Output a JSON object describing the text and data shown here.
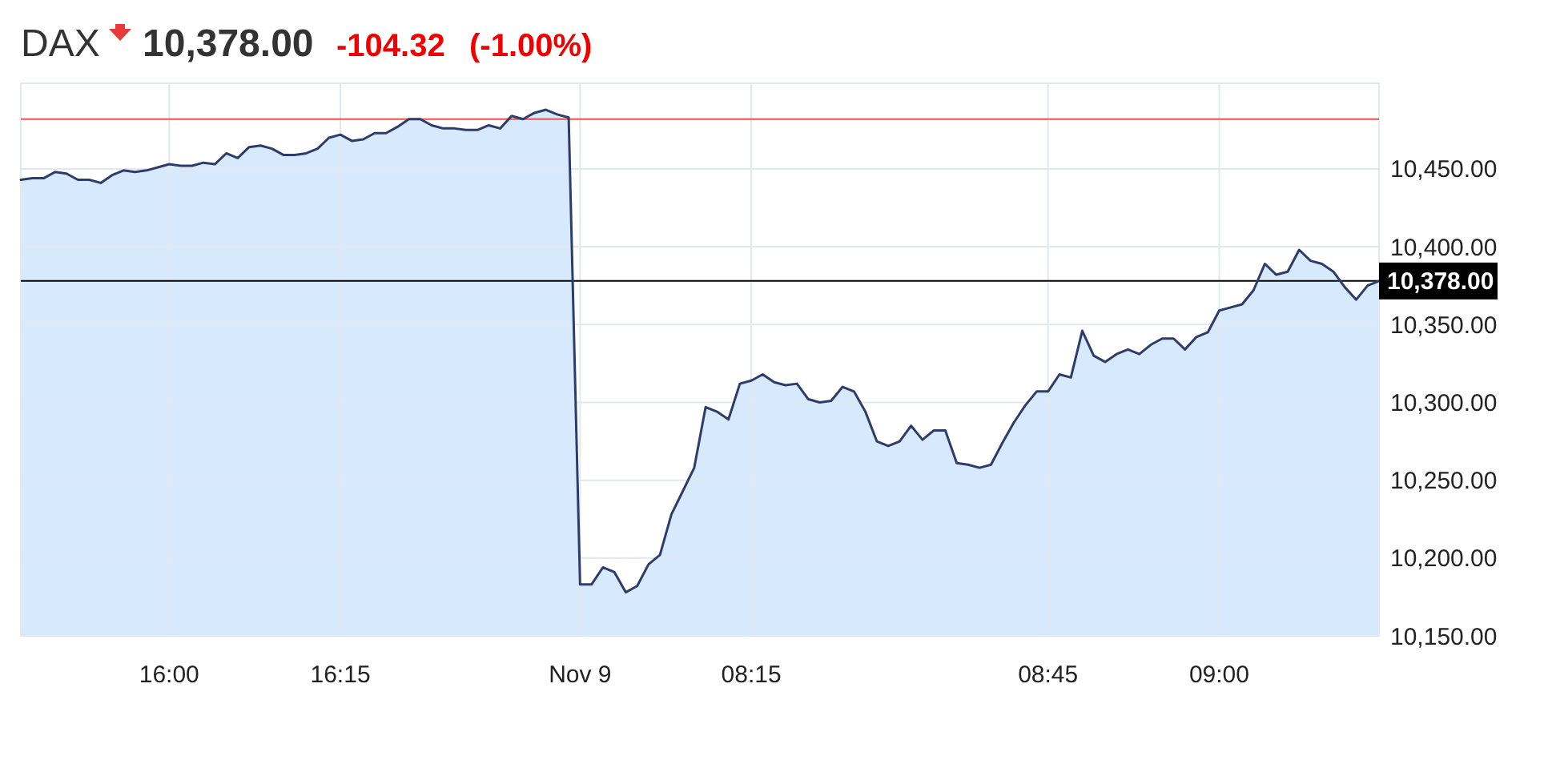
{
  "chart_data": {
    "type": "area",
    "title": "DAX",
    "subtitle": "10,378.00",
    "annotations": [
      "-104.32",
      "(-1.00%)"
    ],
    "categories": [
      null,
      null,
      null,
      null,
      null,
      null,
      null,
      null,
      null,
      null,
      null,
      null,
      null,
      "16:00",
      null,
      null,
      null,
      null,
      null,
      null,
      null,
      null,
      null,
      null,
      null,
      null,
      null,
      null,
      "16:15",
      null,
      null,
      null,
      null,
      null,
      null,
      null,
      null,
      null,
      null,
      null,
      null,
      null,
      null,
      null,
      null,
      null,
      null,
      null,
      null,
      "Nov 9",
      null,
      null,
      null,
      null,
      null,
      null,
      null,
      null,
      null,
      null,
      null,
      null,
      null,
      null,
      "08:15",
      null,
      null,
      null,
      null,
      null,
      null,
      null,
      null,
      null,
      null,
      null,
      null,
      null,
      null,
      null,
      null,
      null,
      null,
      null,
      null,
      null,
      null,
      null,
      null,
      null,
      "08:45",
      null,
      null,
      null,
      null,
      null,
      null,
      null,
      null,
      null,
      null,
      null,
      null,
      null,
      null,
      "09:00",
      null,
      null,
      null,
      null,
      null,
      null,
      null,
      null,
      null,
      null,
      null,
      null,
      null,
      null
    ],
    "series": [
      {
        "color": "#d7e9fc",
        "values": [
          10443,
          10444,
          10444,
          10448,
          10447,
          10443,
          10443,
          10441,
          10446,
          10449,
          10448,
          10449,
          10451,
          10453,
          10452,
          10452,
          10454,
          10453,
          10460,
          10457,
          10464,
          10465,
          10463,
          10459,
          10459,
          10460,
          10463,
          10470,
          10472,
          10468,
          10469,
          10473,
          10473,
          10477,
          10482,
          10482,
          10478,
          10476,
          10476,
          10475,
          10475,
          10478,
          10476,
          10484,
          10482,
          10486,
          10488,
          10485,
          10483,
          10183,
          10183,
          10194,
          10191,
          10178,
          10182,
          10196,
          10202,
          10228,
          10243,
          10258,
          10297,
          10294,
          10289,
          10312,
          10314,
          10318,
          10313,
          10311,
          10312,
          10302,
          10300,
          10301,
          10310,
          10307,
          10294,
          10275,
          10272,
          10275,
          10285,
          10276,
          10282,
          10282,
          10261,
          10260,
          10258,
          10260,
          10274,
          10287,
          10298,
          10307,
          10307,
          10318,
          10316,
          10346,
          10330,
          10326,
          10331,
          10334,
          10331,
          10337,
          10341,
          10341,
          10334,
          10342,
          10345,
          10359,
          10361,
          10363,
          10372,
          10389,
          10382,
          10384,
          10398,
          10391,
          10389,
          10384,
          10374,
          10366,
          10375,
          10378
        ]
      }
    ],
    "ylim": [
      10150,
      10505
    ],
    "yticks": [
      {
        "value": 10150,
        "label": "10,150.00"
      },
      {
        "value": 10200,
        "label": "10,200.00"
      },
      {
        "value": 10250,
        "label": "10,250.00"
      },
      {
        "value": 10300,
        "label": "10,300.00"
      },
      {
        "value": 10350,
        "label": "10,350.00"
      },
      {
        "value": 10400,
        "label": "10,400.00"
      },
      {
        "value": 10450,
        "label": "10,450.00"
      }
    ],
    "grid": true,
    "ref_lines": [
      {
        "axis": "y",
        "value": 10482,
        "color": "#e8514f"
      },
      {
        "axis": "y",
        "value": 10378,
        "label": "10,378.00",
        "color": "#000000"
      }
    ]
  }
}
